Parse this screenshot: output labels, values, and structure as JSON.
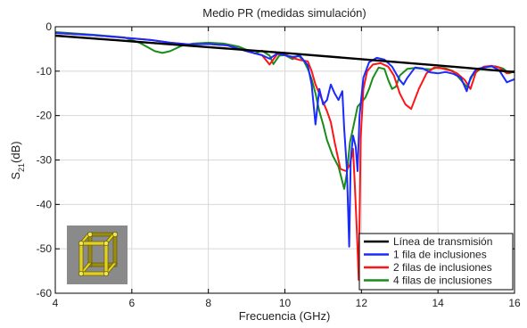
{
  "chart_data": {
    "type": "line",
    "title": "Medio PR (medidas simulación)",
    "xlabel": "Frecuencia (GHz)",
    "ylabel": "S21(dB)",
    "ylabel_main": "S",
    "ylabel_sub": "21",
    "ylabel_rest": "(dB)",
    "xlim": [
      4,
      16
    ],
    "ylim": [
      -60,
      0
    ],
    "xticks": [
      4,
      6,
      8,
      10,
      12,
      14,
      16
    ],
    "yticks": [
      -60,
      -50,
      -40,
      -30,
      -20,
      -10,
      0
    ],
    "grid": true,
    "legend_position": "bottom-right",
    "inset_image": "yellow-cube-unit-cell-icon",
    "series": [
      {
        "name": "Línea de transmisión",
        "color": "#000000",
        "points": [
          [
            4,
            -2
          ],
          [
            6,
            -3.3
          ],
          [
            8,
            -4.6
          ],
          [
            10,
            -5.9
          ],
          [
            12,
            -7.3
          ],
          [
            14,
            -8.7
          ],
          [
            16,
            -10.2
          ]
        ]
      },
      {
        "name": "1 fila de inclusiones",
        "color": "#1a2bff",
        "points": [
          [
            4,
            -1.4
          ],
          [
            5,
            -1.9
          ],
          [
            6,
            -2.6
          ],
          [
            6.5,
            -3
          ],
          [
            7,
            -3.6
          ],
          [
            7.5,
            -4
          ],
          [
            8,
            -3.9
          ],
          [
            8.5,
            -4.2
          ],
          [
            9,
            -5.5
          ],
          [
            9.4,
            -6.4
          ],
          [
            9.6,
            -7.2
          ],
          [
            9.8,
            -6
          ],
          [
            10,
            -6.4
          ],
          [
            10.2,
            -6.8
          ],
          [
            10.4,
            -6.6
          ],
          [
            10.6,
            -8.7
          ],
          [
            10.7,
            -13
          ],
          [
            10.8,
            -22
          ],
          [
            10.9,
            -14
          ],
          [
            11,
            -17.5
          ],
          [
            11.1,
            -16.5
          ],
          [
            11.2,
            -13
          ],
          [
            11.3,
            -15
          ],
          [
            11.4,
            -16.5
          ],
          [
            11.5,
            -14.5
          ],
          [
            11.55,
            -23
          ],
          [
            11.62,
            -32
          ],
          [
            11.68,
            -49.5
          ],
          [
            11.72,
            -30
          ],
          [
            11.78,
            -24.5
          ],
          [
            11.85,
            -27
          ],
          [
            11.9,
            -32.5
          ],
          [
            11.95,
            -20
          ],
          [
            12.05,
            -11.5
          ],
          [
            12.2,
            -8
          ],
          [
            12.4,
            -7
          ],
          [
            12.6,
            -7.4
          ],
          [
            12.8,
            -9
          ],
          [
            13.0,
            -12
          ],
          [
            13.1,
            -13
          ],
          [
            13.2,
            -11.5
          ],
          [
            13.4,
            -9.2
          ],
          [
            13.6,
            -9.4
          ],
          [
            13.8,
            -10.3
          ],
          [
            14.0,
            -10.5
          ],
          [
            14.2,
            -10.2
          ],
          [
            14.4,
            -10.6
          ],
          [
            14.6,
            -11.5
          ],
          [
            14.75,
            -14.5
          ],
          [
            14.85,
            -11.5
          ],
          [
            15.0,
            -9.5
          ],
          [
            15.2,
            -9.2
          ],
          [
            15.4,
            -8.9
          ],
          [
            15.6,
            -9.8
          ],
          [
            15.8,
            -12.5
          ],
          [
            16,
            -11.8
          ]
        ]
      },
      {
        "name": "2 filas de inclusiones",
        "color": "#ff1414",
        "points": [
          [
            4,
            -1.4
          ],
          [
            5,
            -1.9
          ],
          [
            6,
            -2.6
          ],
          [
            6.5,
            -3
          ],
          [
            7,
            -3.6
          ],
          [
            7.5,
            -4
          ],
          [
            8,
            -3.9
          ],
          [
            8.5,
            -4.2
          ],
          [
            9,
            -5.5
          ],
          [
            9.4,
            -6.4
          ],
          [
            9.6,
            -8.5
          ],
          [
            9.8,
            -6.2
          ],
          [
            10,
            -6.2
          ],
          [
            10.2,
            -7
          ],
          [
            10.4,
            -7.5
          ],
          [
            10.6,
            -7.8
          ],
          [
            10.7,
            -10
          ],
          [
            10.8,
            -13
          ],
          [
            10.9,
            -15
          ],
          [
            11.0,
            -17
          ],
          [
            11.1,
            -19
          ],
          [
            11.2,
            -21.5
          ],
          [
            11.3,
            -26
          ],
          [
            11.45,
            -32
          ],
          [
            11.6,
            -32.5
          ],
          [
            11.7,
            -31
          ],
          [
            11.78,
            -27.5
          ],
          [
            11.83,
            -36
          ],
          [
            11.88,
            -46
          ],
          [
            11.93,
            -57
          ],
          [
            11.98,
            -25
          ],
          [
            12.05,
            -14
          ],
          [
            12.15,
            -10
          ],
          [
            12.3,
            -8.5
          ],
          [
            12.5,
            -8.2
          ],
          [
            12.7,
            -9
          ],
          [
            12.85,
            -11
          ],
          [
            13.0,
            -15
          ],
          [
            13.15,
            -17.5
          ],
          [
            13.3,
            -18.5
          ],
          [
            13.5,
            -14
          ],
          [
            13.7,
            -10.5
          ],
          [
            13.9,
            -9.2
          ],
          [
            14.1,
            -9.4
          ],
          [
            14.3,
            -9.8
          ],
          [
            14.5,
            -10.5
          ],
          [
            14.7,
            -12
          ],
          [
            14.85,
            -14
          ],
          [
            15.0,
            -10
          ],
          [
            15.2,
            -9
          ],
          [
            15.4,
            -8.8
          ],
          [
            15.6,
            -9.2
          ],
          [
            15.8,
            -10.5
          ],
          [
            16,
            -10
          ]
        ]
      },
      {
        "name": "4 filas de inclusiones",
        "color": "#1a8c1a",
        "points": [
          [
            4,
            -1.2
          ],
          [
            5,
            -1.8
          ],
          [
            5.8,
            -2.4
          ],
          [
            6.2,
            -3.6
          ],
          [
            6.6,
            -5.5
          ],
          [
            6.8,
            -5.9
          ],
          [
            7.0,
            -5.5
          ],
          [
            7.3,
            -4.3
          ],
          [
            7.6,
            -3.8
          ],
          [
            8,
            -3.6
          ],
          [
            8.4,
            -3.8
          ],
          [
            8.8,
            -4.5
          ],
          [
            9.0,
            -5.2
          ],
          [
            9.2,
            -6
          ],
          [
            9.4,
            -5.4
          ],
          [
            9.6,
            -6.5
          ],
          [
            9.7,
            -8.4
          ],
          [
            9.85,
            -6.5
          ],
          [
            10.0,
            -6.4
          ],
          [
            10.2,
            -7.3
          ],
          [
            10.35,
            -6.4
          ],
          [
            10.5,
            -7.8
          ],
          [
            10.6,
            -9.5
          ],
          [
            10.7,
            -11.8
          ],
          [
            10.8,
            -15
          ],
          [
            10.9,
            -19
          ],
          [
            11.0,
            -22
          ],
          [
            11.1,
            -25.5
          ],
          [
            11.25,
            -29
          ],
          [
            11.4,
            -31.5
          ],
          [
            11.55,
            -36.5
          ],
          [
            11.62,
            -33
          ],
          [
            11.7,
            -26
          ],
          [
            11.8,
            -22
          ],
          [
            11.9,
            -18
          ],
          [
            12.0,
            -17
          ],
          [
            12.1,
            -16
          ],
          [
            12.2,
            -14
          ],
          [
            12.3,
            -11.5
          ],
          [
            12.45,
            -9.2
          ],
          [
            12.6,
            -9.5
          ],
          [
            12.7,
            -12
          ],
          [
            12.8,
            -14
          ],
          [
            12.9,
            -13.5
          ],
          [
            13.0,
            -11
          ],
          [
            13.2,
            -9.5
          ],
          [
            13.4,
            -9.3
          ],
          [
            13.6,
            -9.5
          ],
          [
            13.8,
            -9.6
          ],
          [
            14.0,
            -9.2
          ],
          [
            14.2,
            -9.4
          ],
          [
            14.4,
            -10
          ],
          [
            14.6,
            -12
          ],
          [
            14.75,
            -13.5
          ],
          [
            14.9,
            -11
          ],
          [
            15.1,
            -9.5
          ],
          [
            15.3,
            -9
          ],
          [
            15.5,
            -8.9
          ],
          [
            15.7,
            -9.4
          ],
          [
            15.85,
            -10.5
          ],
          [
            16,
            -10
          ]
        ]
      }
    ]
  }
}
